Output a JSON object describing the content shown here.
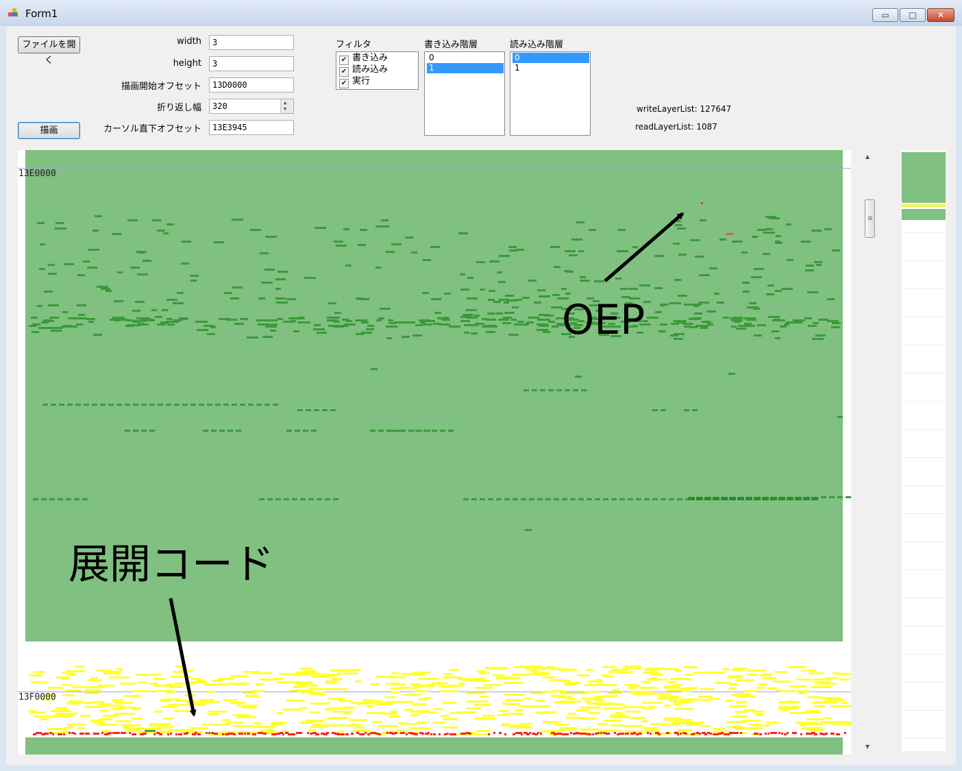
{
  "window": {
    "title": "Form1",
    "minimize_glyph": "▭",
    "maximize_glyph": "□",
    "close_glyph": "✕"
  },
  "controls": {
    "open_file_label": "ファイルを開く",
    "draw_label": "描画",
    "width_label": "width",
    "width_value": "3",
    "height_label": "height",
    "height_value": "3",
    "start_offset_label": "描画開始オフセット",
    "start_offset_value": "13D0000",
    "wrap_label": "折り返し幅",
    "wrap_value": "320",
    "cursor_offset_label": "カーソル直下オフセット",
    "cursor_offset_value": "13E3945"
  },
  "filter": {
    "label": "フィルタ",
    "items": [
      {
        "label": "書き込み",
        "checked": true
      },
      {
        "label": "読み込み",
        "checked": true
      },
      {
        "label": "実行",
        "checked": true
      }
    ]
  },
  "write_layers": {
    "label": "書き込み階層",
    "items": [
      "0",
      "1"
    ],
    "selected": "1"
  },
  "read_layers": {
    "label": "読み込み階層",
    "items": [
      "0",
      "1"
    ],
    "selected": "0"
  },
  "stats": {
    "write_layer_list": "writeLayerList: 127647",
    "read_layer_list": "readLayerList: 1087"
  },
  "canvas": {
    "offset_top": "13E0000",
    "offset_bottom": "13F0000",
    "colors": {
      "green_region": "#80c080",
      "dark_green_marks": "#3a9a3a",
      "yellow_marks": "#ffff33",
      "red_marks": "#ff2020",
      "offset_line": "#a0a8e0"
    }
  },
  "annotations": {
    "oep": "OEP",
    "unpack_code": "展開コード"
  },
  "icons": {
    "app_icon": "form-icon",
    "scroll_up": "▲",
    "scroll_down": "▼"
  }
}
